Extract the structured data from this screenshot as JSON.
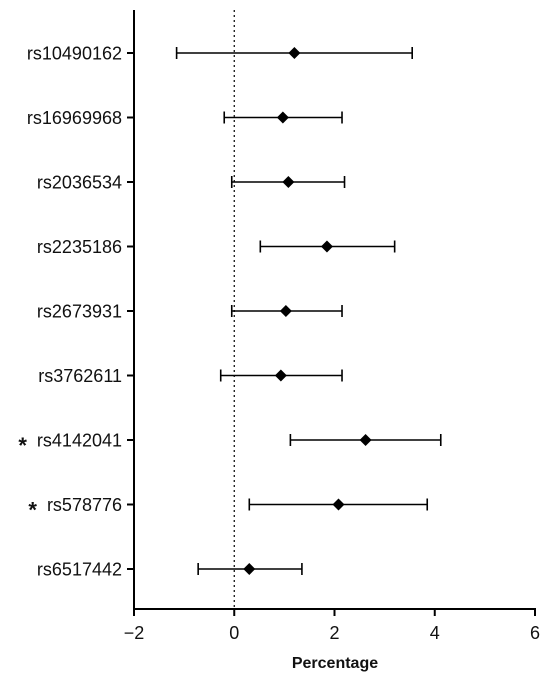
{
  "chart_data": {
    "type": "forest",
    "xlabel": "Percentage",
    "ylabel": "",
    "xlim": [
      -2,
      6
    ],
    "xticks": [
      -2,
      0,
      2,
      4,
      6
    ],
    "xtick_labels": [
      "−2",
      "0",
      "2",
      "4",
      "6"
    ],
    "reference_line": 0,
    "grid": false,
    "rows": [
      {
        "label": "rs10490162",
        "estimate": 1.2,
        "lower": -1.15,
        "upper": 3.55,
        "significant": false
      },
      {
        "label": "rs16969968",
        "estimate": 0.97,
        "lower": -0.2,
        "upper": 2.15,
        "significant": false
      },
      {
        "label": "rs2036534",
        "estimate": 1.08,
        "lower": -0.05,
        "upper": 2.2,
        "significant": false
      },
      {
        "label": "rs2235186",
        "estimate": 1.85,
        "lower": 0.52,
        "upper": 3.2,
        "significant": false
      },
      {
        "label": "rs2673931",
        "estimate": 1.03,
        "lower": -0.05,
        "upper": 2.15,
        "significant": false
      },
      {
        "label": "rs3762611",
        "estimate": 0.93,
        "lower": -0.27,
        "upper": 2.15,
        "significant": false
      },
      {
        "label": "rs4142041",
        "estimate": 2.62,
        "lower": 1.12,
        "upper": 4.12,
        "significant": true
      },
      {
        "label": "rs578776",
        "estimate": 2.08,
        "lower": 0.3,
        "upper": 3.85,
        "significant": true
      },
      {
        "label": "rs6517442",
        "estimate": 0.3,
        "lower": -0.72,
        "upper": 1.35,
        "significant": false
      }
    ],
    "significance_marker": "*"
  }
}
